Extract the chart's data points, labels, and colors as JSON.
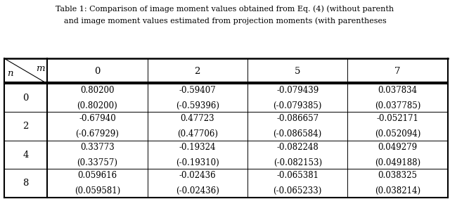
{
  "title_line1": "Table 1: Comparison of image moment values obtained from Eq. (4) (without parenth",
  "title_line2": "and image moment values estimated from projection moments (with parentheses",
  "col_headers": [
    "0",
    "2",
    "5",
    "7"
  ],
  "row_headers": [
    "0",
    "2",
    "4",
    "8"
  ],
  "cells": [
    [
      "0.80200\n(0.80200)",
      "-0.59407\n(-0.59396)",
      "-0.079439\n(-0.079385)",
      "0.037834\n(0.037785)"
    ],
    [
      "-0.67940\n(-0.67929)",
      "0.47723\n(0.47706)",
      "-0.086657\n(-0.086584)",
      "-0.052171\n(0.052094)"
    ],
    [
      "0.33773\n(0.33757)",
      "-0.19324\n(-0.19310)",
      "-0.082248\n(-0.082153)",
      "0.049279\n(0.049188)"
    ],
    [
      "0.059616\n(0.059581)",
      "-0.02436\n(-0.02436)",
      "-0.065381\n(-0.065233)",
      "0.038325\n(0.038214)"
    ]
  ],
  "bg_color": "#ffffff",
  "text_color": "#000000",
  "title_fontsize": 8.0,
  "header_fontsize": 9.5,
  "cell_fontsize": 8.5,
  "fig_width": 6.4,
  "fig_height": 2.83,
  "dpi": 100
}
